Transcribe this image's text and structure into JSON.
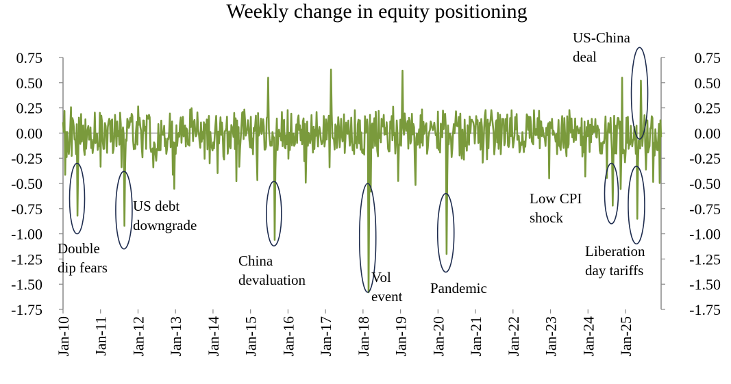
{
  "chart_data": {
    "type": "line",
    "title": "Weekly change in equity positioning",
    "y_axis": {
      "ylim": [
        -1.75,
        0.75
      ],
      "ticks": [
        "0.75",
        "0.50",
        "0.25",
        "0.00",
        "-0.25",
        "-0.50",
        "-0.75",
        "-1.00",
        "-1.25",
        "-1.50",
        "-1.75"
      ],
      "tick_values": [
        0.75,
        0.5,
        0.25,
        0,
        -0.25,
        -0.5,
        -0.75,
        -1.0,
        -1.25,
        -1.5,
        -1.75
      ],
      "mirrored_right": true
    },
    "x_axis": {
      "range": [
        "2010-01",
        "2025-12"
      ],
      "tick_labels": [
        "Jan-10",
        "Jan-11",
        "Jan-12",
        "Jan-13",
        "Jan-14",
        "Jan-15",
        "Jan-16",
        "Jan-17",
        "Jan-18",
        "Jan-19",
        "Jan-20",
        "Jan-21",
        "Jan-22",
        "Jan-23",
        "Jan-24",
        "Jan-25"
      ],
      "tick_years": [
        2010,
        2011,
        2012,
        2013,
        2014,
        2015,
        2016,
        2017,
        2018,
        2019,
        2020,
        2021,
        2022,
        2023,
        2024,
        2025
      ],
      "label_rotation": "vertical"
    },
    "series": [
      {
        "color": "#7a9a3c",
        "frequency": "weekly",
        "typical_range": [
          -0.3,
          0.3
        ],
        "notable_points": [
          {
            "date": "2010-05",
            "value": -0.82
          },
          {
            "date": "2011-08",
            "value": -0.92
          },
          {
            "date": "2015-08",
            "value": -1.06
          },
          {
            "date": "2015-06",
            "value": 0.55
          },
          {
            "date": "2017-02",
            "value": 0.63
          },
          {
            "date": "2018-02",
            "value": -1.58
          },
          {
            "date": "2019-01",
            "value": 0.62
          },
          {
            "date": "2020-03",
            "value": -1.2
          },
          {
            "date": "2024-08",
            "value": -0.72
          },
          {
            "date": "2024-11",
            "value": 0.55
          },
          {
            "date": "2025-04",
            "value": -0.85
          },
          {
            "date": "2025-05",
            "value": 0.52
          }
        ]
      }
    ],
    "annotations": [
      {
        "text": [
          "Double",
          "dip fears"
        ],
        "date": "2010-05",
        "low": -1.0,
        "high": -0.3
      },
      {
        "text": [
          "US debt",
          "downgrade"
        ],
        "date": "2011-08",
        "low": -1.15,
        "high": -0.38
      },
      {
        "text": [
          "China",
          "devaluation"
        ],
        "date": "2015-08",
        "low": -1.12,
        "high": -0.48
      },
      {
        "text": [
          "Vol",
          "event"
        ],
        "date": "2018-02",
        "low": -1.58,
        "high": -0.5
      },
      {
        "text": [
          "Pandemic"
        ],
        "date": "2020-03",
        "low": -1.38,
        "high": -0.6
      },
      {
        "text": [
          "Low CPI",
          "shock"
        ],
        "date": "2024-08",
        "low": -0.9,
        "high": -0.3
      },
      {
        "text": [
          "Liberation",
          "day tariffs"
        ],
        "date": "2025-04",
        "low": -1.1,
        "high": -0.33
      },
      {
        "text": [
          "US-China",
          "deal"
        ],
        "date": "2025-05",
        "low": -0.06,
        "high": 0.85
      }
    ],
    "grid": false,
    "legend": "none"
  }
}
